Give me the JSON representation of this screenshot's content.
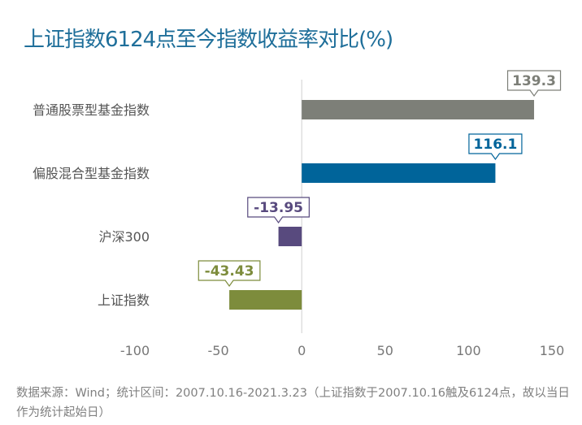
{
  "title": "上证指数6124点至今指数收益率对比(%)",
  "source": "数据来源：Wind；统计区间：2007.10.16-2021.3.23（上证指数于2007.10.16触及6124点，故以当日作为统计起始日）",
  "chart_data": {
    "type": "bar",
    "orientation": "horizontal",
    "title": "上证指数6124点至今指数收益率对比(%)",
    "categories": [
      "普通股票型基金指数",
      "偏股混合型基金指数",
      "沪深300",
      "上证指数"
    ],
    "values": [
      139.3,
      116.1,
      -13.95,
      -43.43
    ],
    "value_labels": [
      "139.3",
      "116.1",
      "-13.95",
      "-43.43"
    ],
    "colors": [
      "#7d7f78",
      "#00649a",
      "#584a7e",
      "#7d8c3c"
    ],
    "xlim": [
      -100,
      150
    ],
    "x_ticks": [
      "-100",
      "-50",
      "0",
      "50",
      "100",
      "150"
    ],
    "grid": false,
    "legend": "none"
  }
}
